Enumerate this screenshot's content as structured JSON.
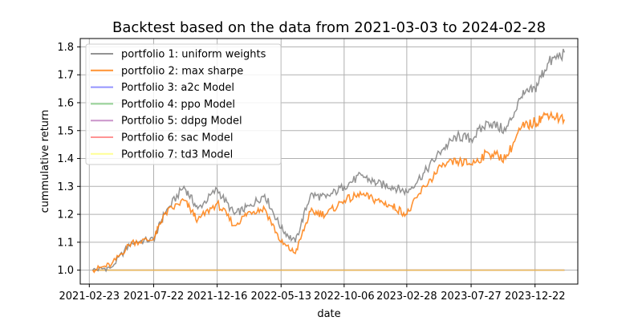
{
  "chart_data": {
    "type": "line",
    "title": "Backtest based on the data from 2021-03-03 to 2024-02-28",
    "xlabel": "date",
    "ylabel": "cummulative return",
    "x_tick_labels": [
      "2021-02-23",
      "2021-07-22",
      "2021-12-16",
      "2022-05-13",
      "2022-10-06",
      "2023-02-28",
      "2023-07-27",
      "2023-12-22"
    ],
    "y_tick_labels": [
      "1.0",
      "1.1",
      "1.2",
      "1.3",
      "1.4",
      "1.5",
      "1.6",
      "1.7",
      "1.8"
    ],
    "ylim": [
      0.95,
      1.83
    ],
    "grid": true,
    "legend_position": "top-left",
    "x": [
      "2021-03-03",
      "2021-04-15",
      "2021-06-01",
      "2021-07-22",
      "2021-08-15",
      "2021-09-30",
      "2021-11-01",
      "2021-12-16",
      "2022-01-25",
      "2022-03-01",
      "2022-04-05",
      "2022-05-13",
      "2022-06-15",
      "2022-07-20",
      "2022-08-25",
      "2022-10-06",
      "2022-11-15",
      "2022-12-20",
      "2023-01-25",
      "2023-02-28",
      "2023-04-10",
      "2023-05-20",
      "2023-06-25",
      "2023-07-27",
      "2023-09-05",
      "2023-10-15",
      "2023-11-20",
      "2023-12-22",
      "2024-01-20",
      "2024-02-28"
    ],
    "series": [
      {
        "name": "portfolio 1: uniform weights",
        "color": "#808080",
        "values": [
          1.0,
          1.01,
          1.1,
          1.11,
          1.2,
          1.3,
          1.22,
          1.29,
          1.2,
          1.23,
          1.27,
          1.15,
          1.1,
          1.27,
          1.26,
          1.3,
          1.34,
          1.31,
          1.3,
          1.28,
          1.35,
          1.43,
          1.48,
          1.47,
          1.53,
          1.5,
          1.62,
          1.65,
          1.74,
          1.78
        ]
      },
      {
        "name": "portfolio 2: max sharpe",
        "color": "#ff7f0e",
        "values": [
          1.0,
          1.02,
          1.1,
          1.11,
          1.2,
          1.25,
          1.18,
          1.24,
          1.16,
          1.21,
          1.22,
          1.1,
          1.06,
          1.21,
          1.2,
          1.25,
          1.27,
          1.25,
          1.23,
          1.2,
          1.3,
          1.37,
          1.39,
          1.38,
          1.42,
          1.4,
          1.51,
          1.53,
          1.56,
          1.54
        ]
      },
      {
        "name": "Portfolio 3: a2c Model",
        "color": "#4d4dff",
        "values": [
          1.0,
          1.0,
          1.0,
          1.0,
          1.0,
          1.0,
          1.0,
          1.0,
          1.0,
          1.0,
          1.0,
          1.0,
          1.0,
          1.0,
          1.0,
          1.0,
          1.0,
          1.0,
          1.0,
          1.0,
          1.0,
          1.0,
          1.0,
          1.0,
          1.0,
          1.0,
          1.0,
          1.0,
          1.0,
          1.0
        ]
      },
      {
        "name": "Portfolio 4: ppo Model",
        "color": "#4db34d",
        "values": [
          1.0,
          1.0,
          1.0,
          1.0,
          1.0,
          1.0,
          1.0,
          1.0,
          1.0,
          1.0,
          1.0,
          1.0,
          1.0,
          1.0,
          1.0,
          1.0,
          1.0,
          1.0,
          1.0,
          1.0,
          1.0,
          1.0,
          1.0,
          1.0,
          1.0,
          1.0,
          1.0,
          1.0,
          1.0,
          1.0
        ]
      },
      {
        "name": "Portfolio 5: ddpg Model",
        "color": "#a64da6",
        "values": [
          1.0,
          1.0,
          1.0,
          1.0,
          1.0,
          1.0,
          1.0,
          1.0,
          1.0,
          1.0,
          1.0,
          1.0,
          1.0,
          1.0,
          1.0,
          1.0,
          1.0,
          1.0,
          1.0,
          1.0,
          1.0,
          1.0,
          1.0,
          1.0,
          1.0,
          1.0,
          1.0,
          1.0,
          1.0,
          1.0
        ]
      },
      {
        "name": "Portfolio 6: sac Model",
        "color": "#ff4d4d",
        "values": [
          1.0,
          1.0,
          1.0,
          1.0,
          1.0,
          1.0,
          1.0,
          1.0,
          1.0,
          1.0,
          1.0,
          1.0,
          1.0,
          1.0,
          1.0,
          1.0,
          1.0,
          1.0,
          1.0,
          1.0,
          1.0,
          1.0,
          1.0,
          1.0,
          1.0,
          1.0,
          1.0,
          1.0,
          1.0,
          1.0
        ]
      },
      {
        "name": "Portfolio 7: td3 Model",
        "color": "#ffff4d",
        "values": [
          1.0,
          1.0,
          1.0,
          1.0,
          1.0,
          1.0,
          1.0,
          1.0,
          1.0,
          1.0,
          1.0,
          1.0,
          1.0,
          1.0,
          1.0,
          1.0,
          1.0,
          1.0,
          1.0,
          1.0,
          1.0,
          1.0,
          1.0,
          1.0,
          1.0,
          1.0,
          1.0,
          1.0,
          1.0,
          1.0
        ]
      }
    ]
  }
}
